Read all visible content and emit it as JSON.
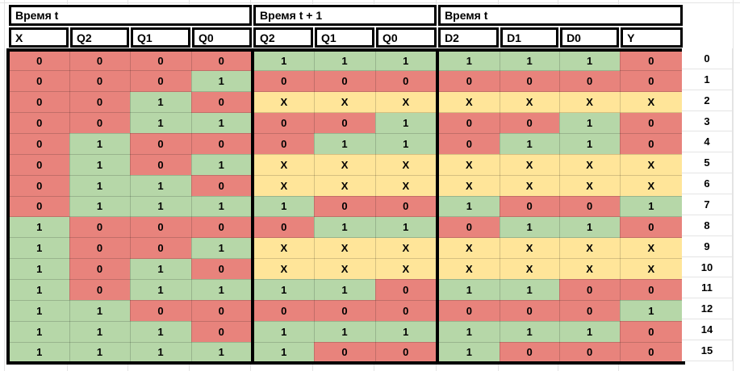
{
  "colors": {
    "value_red": "#e8837c",
    "value_green": "#b6d7a8",
    "value_yellow": "#ffe599",
    "border_black": "#000000",
    "gridline": "#e4e4e4"
  },
  "table": {
    "group_headers": [
      {
        "label": "Время t",
        "colspan": 4
      },
      {
        "label": "Время t + 1",
        "colspan": 3
      },
      {
        "label": "Время t",
        "colspan": 4
      }
    ],
    "column_headers": [
      "X",
      "Q2",
      "Q1",
      "Q0",
      "Q2",
      "Q1",
      "Q0",
      "D2",
      "D1",
      "D0",
      "Y"
    ],
    "value_colors": {
      "0": "red",
      "1": "green",
      "X": "yellow"
    },
    "rows": [
      {
        "label": "0",
        "cells": [
          "0",
          "0",
          "0",
          "0",
          "1",
          "1",
          "1",
          "1",
          "1",
          "1",
          "0"
        ]
      },
      {
        "label": "1",
        "cells": [
          "0",
          "0",
          "0",
          "1",
          "0",
          "0",
          "0",
          "0",
          "0",
          "0",
          "0"
        ]
      },
      {
        "label": "2",
        "cells": [
          "0",
          "0",
          "1",
          "0",
          "X",
          "X",
          "X",
          "X",
          "X",
          "X",
          "X"
        ]
      },
      {
        "label": "3",
        "cells": [
          "0",
          "0",
          "1",
          "1",
          "0",
          "0",
          "1",
          "0",
          "0",
          "1",
          "0"
        ]
      },
      {
        "label": "4",
        "cells": [
          "0",
          "1",
          "0",
          "0",
          "0",
          "1",
          "1",
          "0",
          "1",
          "1",
          "0"
        ]
      },
      {
        "label": "5",
        "cells": [
          "0",
          "1",
          "0",
          "1",
          "X",
          "X",
          "X",
          "X",
          "X",
          "X",
          "X"
        ]
      },
      {
        "label": "6",
        "cells": [
          "0",
          "1",
          "1",
          "0",
          "X",
          "X",
          "X",
          "X",
          "X",
          "X",
          "X"
        ]
      },
      {
        "label": "7",
        "cells": [
          "0",
          "1",
          "1",
          "1",
          "1",
          "0",
          "0",
          "1",
          "0",
          "0",
          "1"
        ]
      },
      {
        "label": "8",
        "cells": [
          "1",
          "0",
          "0",
          "0",
          "0",
          "1",
          "1",
          "0",
          "1",
          "1",
          "0"
        ]
      },
      {
        "label": "9",
        "cells": [
          "1",
          "0",
          "0",
          "1",
          "X",
          "X",
          "X",
          "X",
          "X",
          "X",
          "X"
        ]
      },
      {
        "label": "10",
        "cells": [
          "1",
          "0",
          "1",
          "0",
          "X",
          "X",
          "X",
          "X",
          "X",
          "X",
          "X"
        ]
      },
      {
        "label": "11",
        "cells": [
          "1",
          "0",
          "1",
          "1",
          "1",
          "1",
          "0",
          "1",
          "1",
          "0",
          "0"
        ]
      },
      {
        "label": "12",
        "cells": [
          "1",
          "1",
          "0",
          "0",
          "0",
          "0",
          "0",
          "0",
          "0",
          "0",
          "1"
        ]
      },
      {
        "label": "14",
        "cells": [
          "1",
          "1",
          "1",
          "0",
          "1",
          "1",
          "1",
          "1",
          "1",
          "1",
          "0"
        ]
      },
      {
        "label": "15",
        "cells": [
          "1",
          "1",
          "1",
          "1",
          "1",
          "0",
          "0",
          "1",
          "0",
          "0",
          "0"
        ]
      }
    ]
  }
}
